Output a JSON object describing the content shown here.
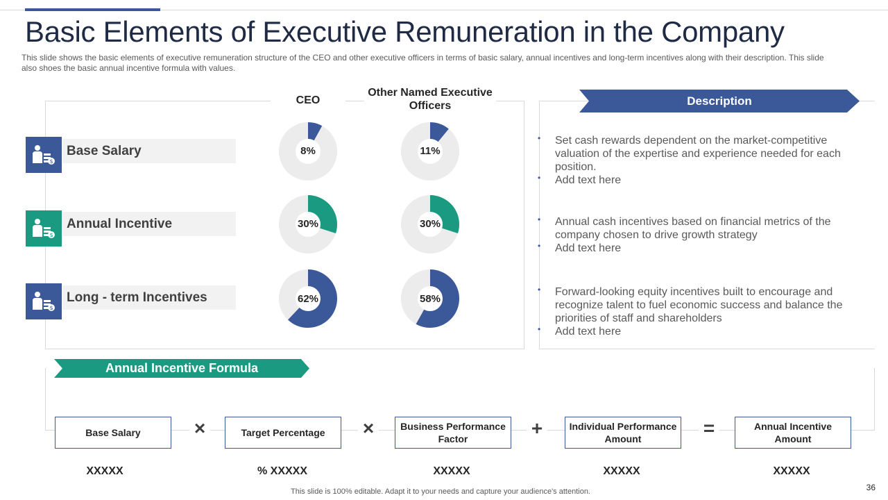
{
  "title": "Basic Elements of Executive Remuneration in the Company",
  "subtitle": "This slide shows the basic elements of executive remuneration structure of the CEO and other executive officers in terms of basic salary, annual incentives and long-term incentives along with their description. This slide also shoes the basic annual incentive formula with values.",
  "colors": {
    "navy": "#3b5998",
    "teal": "#1a9a80",
    "track": "#ececec"
  },
  "columns": {
    "ceo": "CEO",
    "other": "Other Named Executive Officers"
  },
  "rows": [
    {
      "label": "Base Salary",
      "ceo_pct": 8,
      "ceo_text": "8%",
      "other_pct": 11,
      "other_text": "11%",
      "color": "#3b5998"
    },
    {
      "label": "Annual Incentive",
      "ceo_pct": 30,
      "ceo_text": "30%",
      "other_pct": 30,
      "other_text": "30%",
      "color": "#1a9a80"
    },
    {
      "label": "Long -  term Incentives",
      "ceo_pct": 62,
      "ceo_text": "62%",
      "other_pct": 58,
      "other_text": "58%",
      "color": "#3b5998"
    }
  ],
  "description": {
    "title": "Description",
    "bullets": [
      "Set cash rewards dependent on the market-competitive valuation of the expertise and experience needed for each position.",
      "Add text here",
      "Annual cash incentives based on financial metrics of the company chosen to drive growth strategy",
      "Add text here",
      "Forward-looking equity incentives built to encourage and recognize talent to fuel economic success and balance the priorities of staff and shareholders",
      "Add text here"
    ]
  },
  "formula": {
    "title": "Annual Incentive Formula",
    "terms": [
      {
        "label": "Base Salary",
        "value": "XXXXX"
      },
      {
        "label": "Target Percentage",
        "value": "% XXXXX"
      },
      {
        "label": "Business Performance Factor",
        "value": "XXXXX"
      },
      {
        "label": "Individual Performance Amount",
        "value": "XXXXX"
      },
      {
        "label": "Annual Incentive Amount",
        "value": "XXXXX"
      }
    ],
    "operators": [
      "×",
      "×",
      "+",
      "="
    ]
  },
  "footer": "This slide is 100% editable. Adapt it to your needs and capture your audience's attention.",
  "page_number": "36"
}
